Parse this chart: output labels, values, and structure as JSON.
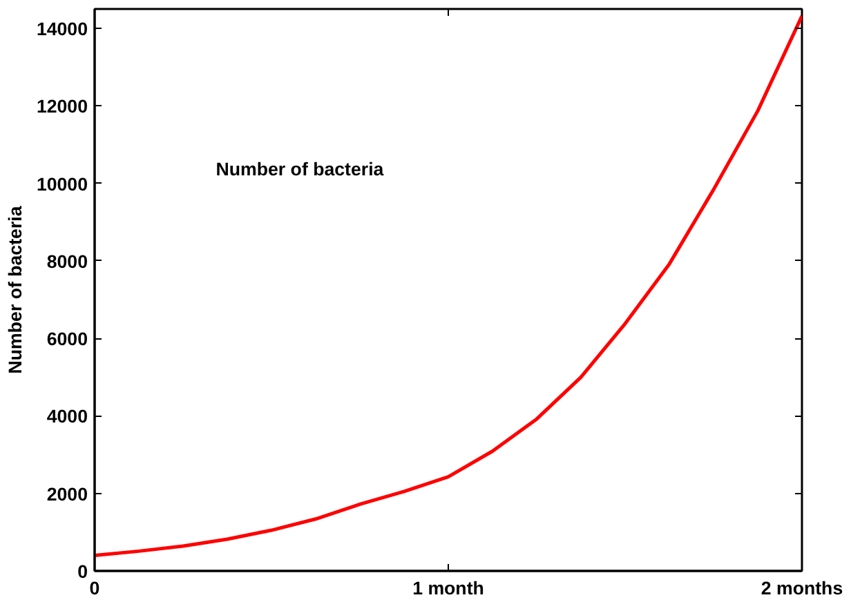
{
  "chart_data": {
    "type": "line",
    "ylabel": "Number of bacteria",
    "annotations": [
      "Number of bacteria"
    ],
    "x": [
      0,
      0.125,
      0.25,
      0.375,
      0.5,
      0.625,
      0.75,
      0.875,
      1,
      1.125,
      1.25,
      1.375,
      1.5,
      1.625,
      1.75,
      1.875,
      2
    ],
    "series": [
      {
        "color": "#ff0000",
        "values": [
          400,
          510,
          640,
          820,
          1050,
          1340,
          1720,
          2050,
          2430,
          3090,
          3920,
          5000,
          6380,
          7920,
          9840,
          11870,
          14320
        ]
      }
    ],
    "xlim": [
      0,
      2
    ],
    "xticks": [
      {
        "value": 0,
        "label": "0"
      },
      {
        "value": 1,
        "label": "1 month"
      },
      {
        "value": 2,
        "label": "2 months"
      }
    ],
    "ylim": [
      0,
      14500
    ],
    "yticks": [
      0,
      2000,
      4000,
      6000,
      8000,
      10000,
      12000,
      14000
    ],
    "grid": false
  }
}
